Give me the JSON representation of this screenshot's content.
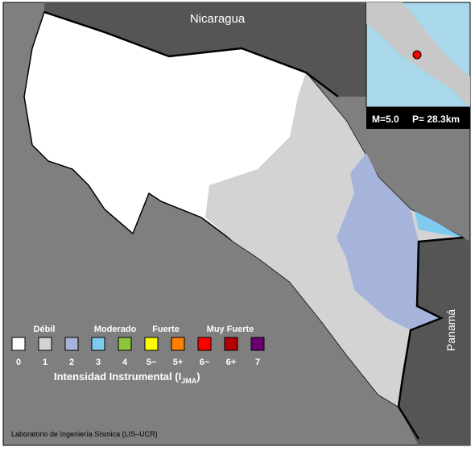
{
  "map": {
    "labels": {
      "north": "Nicaragua",
      "south": "Panamá"
    },
    "inset": {
      "magnitude": "M=5.0",
      "depth": "P= 28.3km"
    },
    "legend": {
      "classes": [
        "Débil",
        "Moderado",
        "Fuerte",
        "Muy Fuerte"
      ],
      "scale": [
        {
          "label": "0",
          "color": "#ffffff"
        },
        {
          "label": "1",
          "color": "#d3d3d3"
        },
        {
          "label": "2",
          "color": "#a6b4dc"
        },
        {
          "label": "3",
          "color": "#7fcbf0"
        },
        {
          "label": "4",
          "color": "#8cc63e"
        },
        {
          "label": "5−",
          "color": "#ffff00"
        },
        {
          "label": "5+",
          "color": "#ff8000"
        },
        {
          "label": "6−",
          "color": "#ff0000"
        },
        {
          "label": "6+",
          "color": "#b40000"
        },
        {
          "label": "7",
          "color": "#6a0070"
        }
      ],
      "title": "Intensidad Instrumental (I",
      "title_sub": "JMA",
      "title_end": ")"
    },
    "credit": "Laboratorio de Ingeniería Sísmica (LIS–UCR)"
  }
}
